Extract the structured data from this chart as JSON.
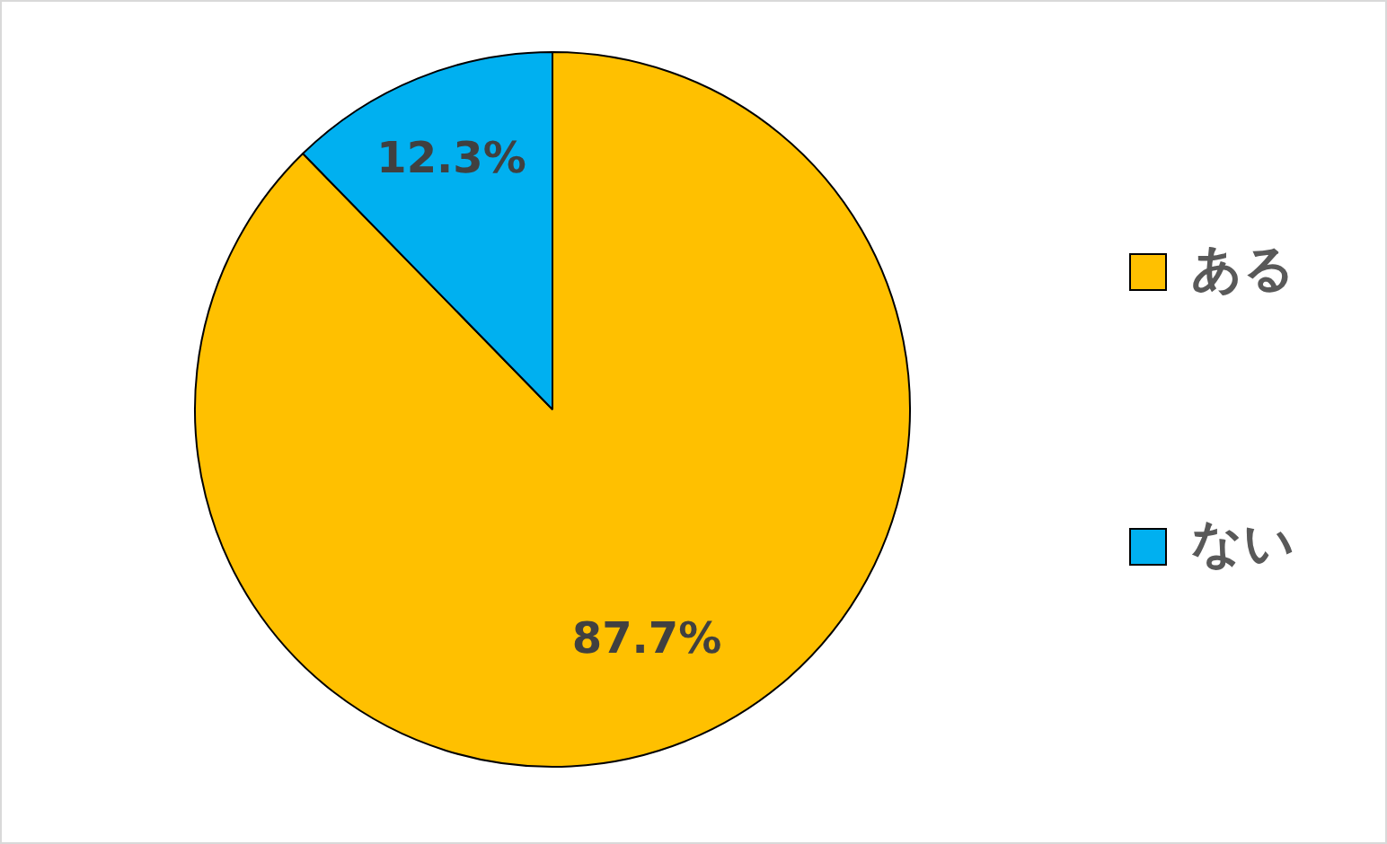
{
  "chart_data": {
    "type": "pie",
    "categories": [
      "ある",
      "ない"
    ],
    "values": [
      87.7,
      12.3
    ],
    "colors": [
      "#ffc000",
      "#00b0f0"
    ],
    "value_labels": [
      "87.7%",
      "12.3%"
    ],
    "legend": "right"
  }
}
